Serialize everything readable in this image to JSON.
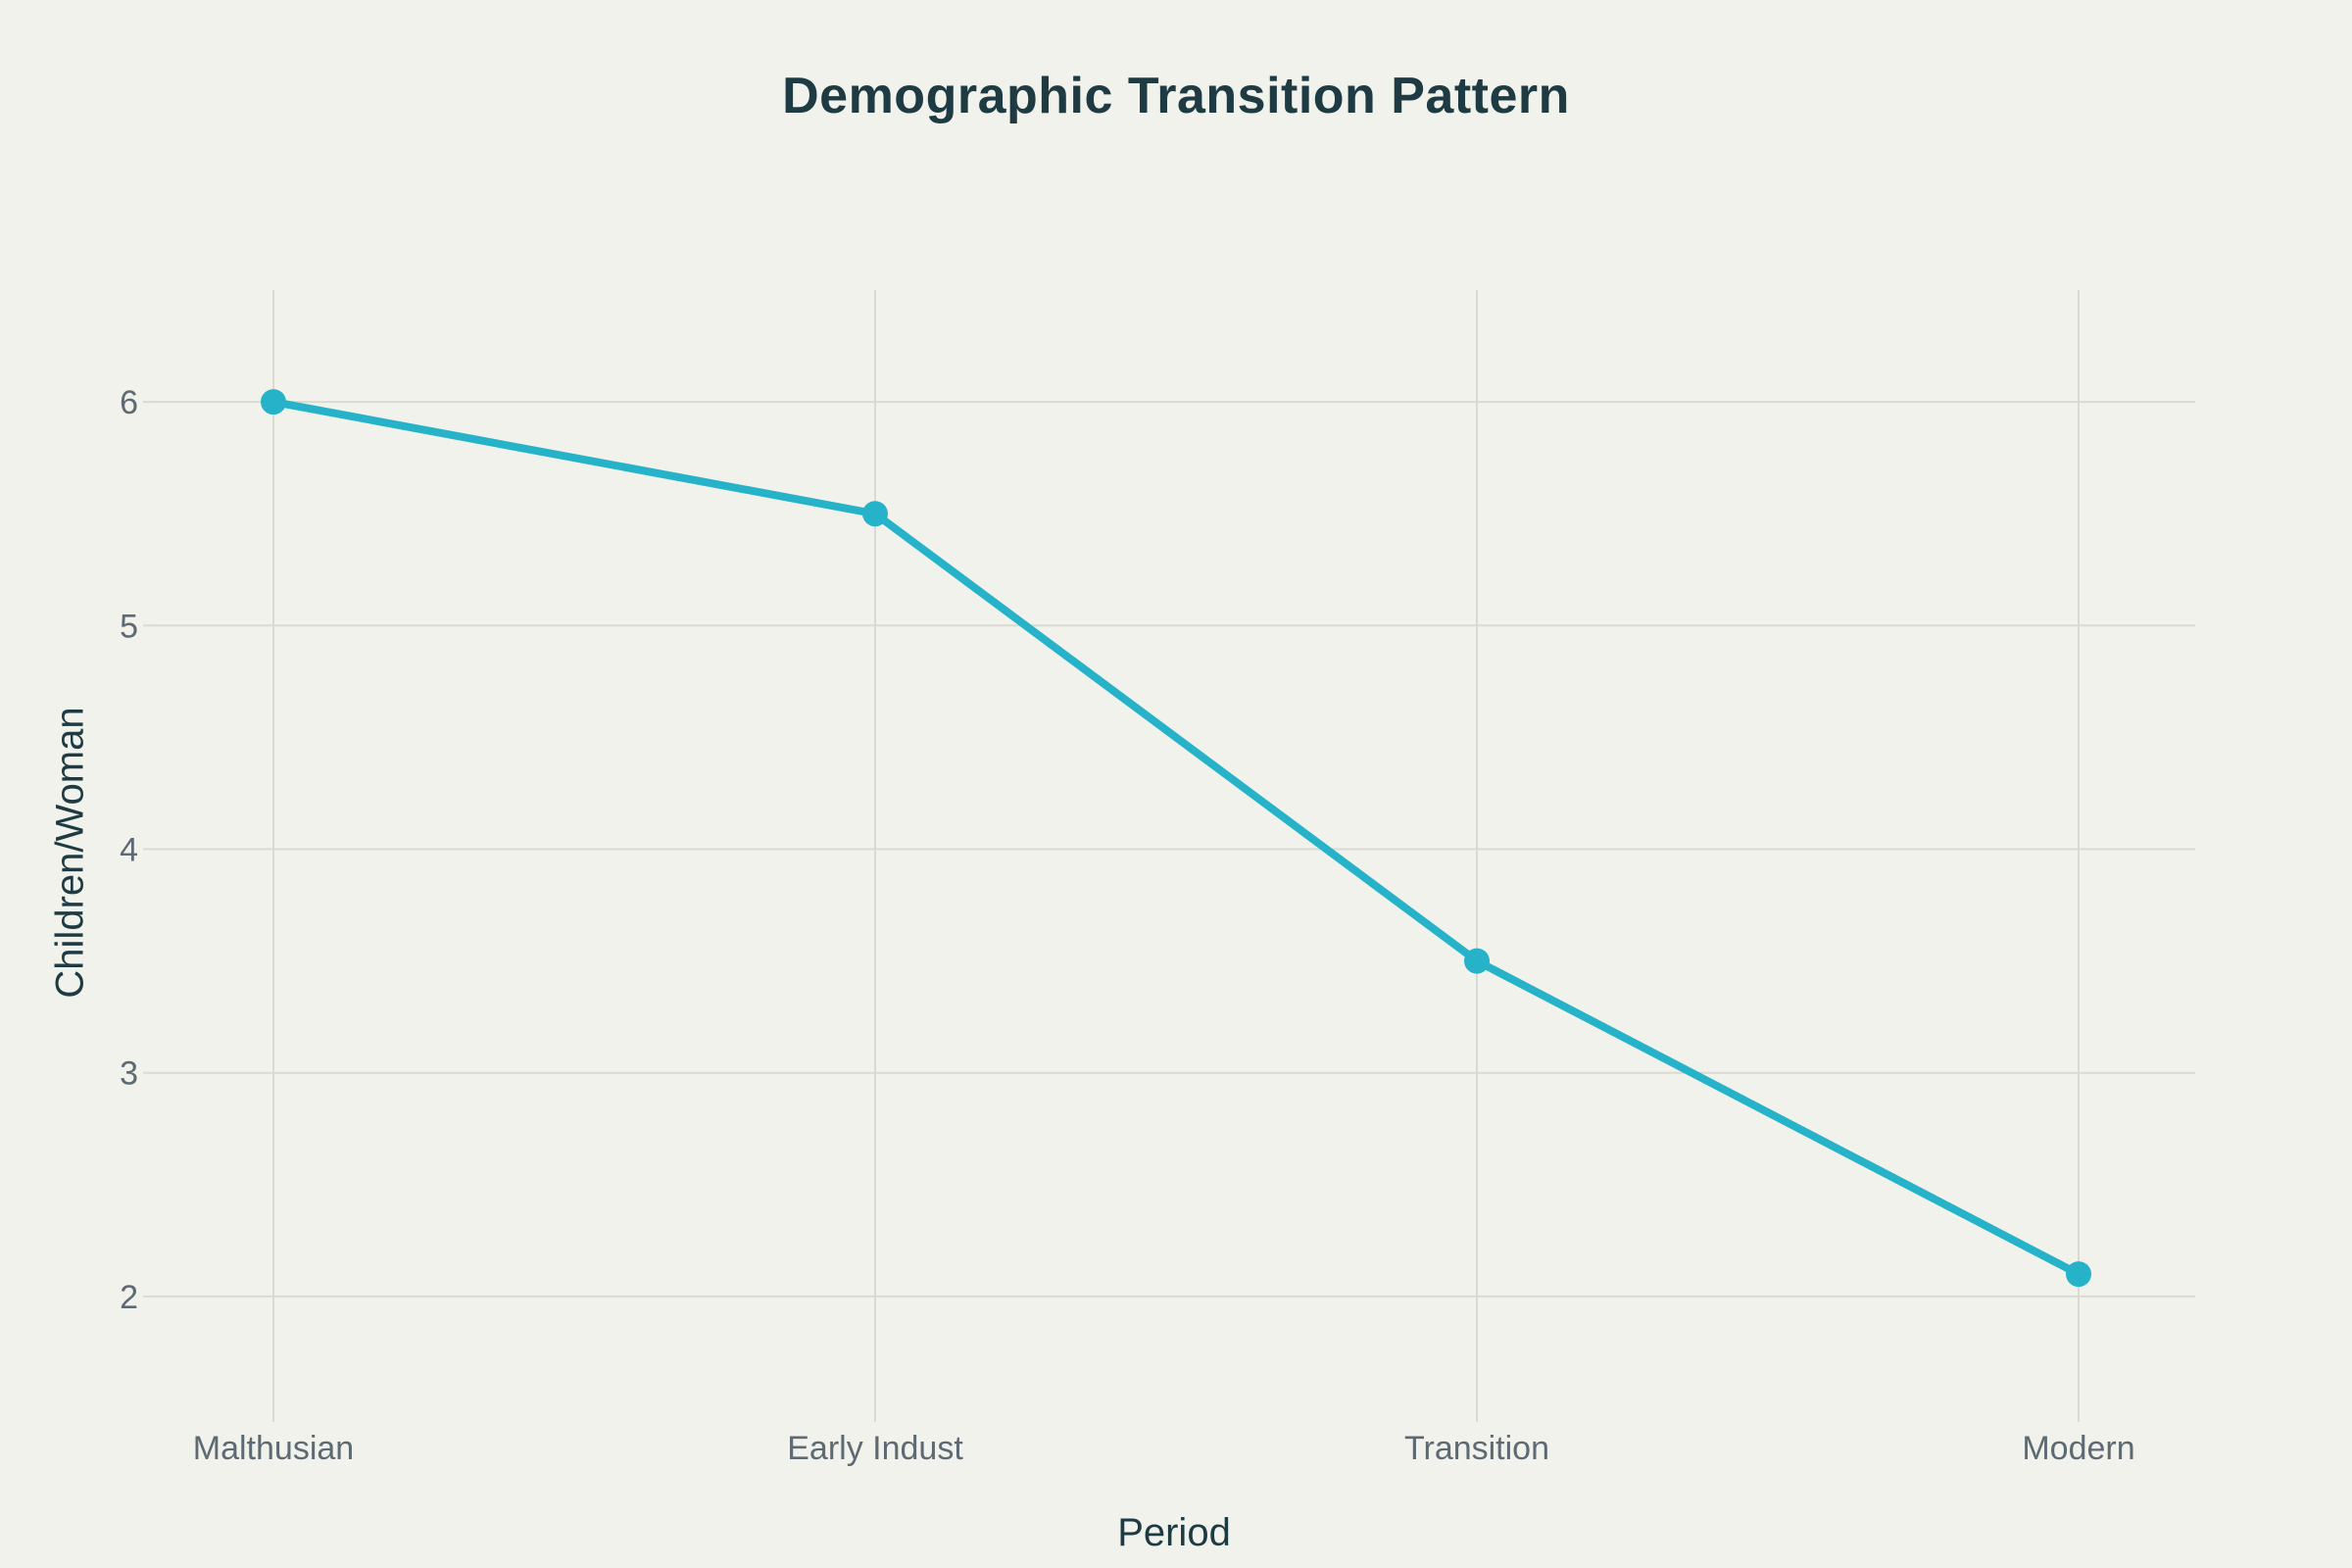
{
  "chart_data": {
    "type": "line",
    "title": "Demographic Transition Pattern",
    "xlabel": "Period",
    "ylabel": "Children/Woman",
    "categories": [
      "Malthusian",
      "Early Indust",
      "Transition",
      "Modern"
    ],
    "values": [
      6.0,
      5.5,
      3.5,
      2.1
    ],
    "yticks": [
      "2",
      "3",
      "4",
      "5",
      "6"
    ],
    "ylim": [
      1.5,
      6.5
    ],
    "grid": true,
    "legend": false,
    "marker_style": "circle",
    "colors": {
      "background": "#f1f2eb",
      "line": "#26b3c9",
      "marker": "#26b3c9",
      "grid": "#d9dad3",
      "tick_label": "#5e6a73",
      "axis_title": "#1e3b43",
      "title": "#1e3b43"
    }
  }
}
